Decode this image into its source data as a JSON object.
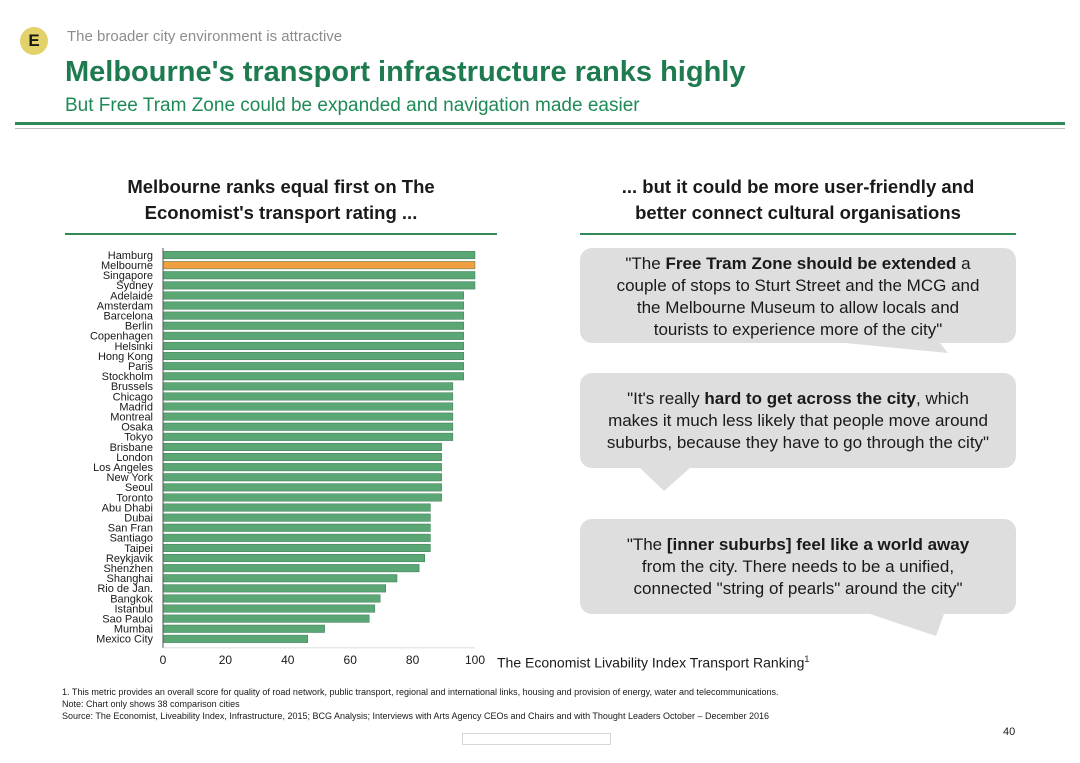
{
  "header": {
    "badge": "E",
    "kicker": "The broader city environment is attractive",
    "title": "Melbourne's transport infrastructure ranks highly",
    "subtitle": "But Free Tram Zone could be expanded and navigation made easier"
  },
  "left": {
    "heading_line1": "Melbourne ranks equal first on The",
    "heading_line2": "Economist's transport rating ..."
  },
  "right": {
    "heading_line1": "... but it could be more user-friendly and",
    "heading_line2": "better connect cultural organisations",
    "quotes": [
      {
        "lines": [
          [
            {
              "t": "\"The ",
              "b": false
            },
            {
              "t": "Free Tram Zone should be extended",
              "b": true
            },
            {
              "t": " a",
              "b": false
            }
          ],
          [
            {
              "t": "couple of stops to Sturt Street and the MCG and",
              "b": false
            }
          ],
          [
            {
              "t": "the Melbourne Museum to allow locals and",
              "b": false
            }
          ],
          [
            {
              "t": "tourists to experience more of the city\"",
              "b": false
            }
          ]
        ]
      },
      {
        "lines": [
          [
            {
              "t": "\"It's really ",
              "b": false
            },
            {
              "t": "hard to get across the city",
              "b": true
            },
            {
              "t": ", which",
              "b": false
            }
          ],
          [
            {
              "t": "makes it much less likely that people move around",
              "b": false
            }
          ],
          [
            {
              "t": "suburbs, because they have to go through the city\"",
              "b": false
            }
          ]
        ]
      },
      {
        "lines": [
          [
            {
              "t": "\"The ",
              "b": false
            },
            {
              "t": "[inner suburbs] feel like a world away",
              "b": true
            }
          ],
          [
            {
              "t": "from the city. There needs to be a unified,",
              "b": false
            }
          ],
          [
            {
              "t": "connected \"string of pearls\" around the city\"",
              "b": false
            }
          ]
        ]
      }
    ]
  },
  "chart_data": {
    "type": "bar",
    "orientation": "horizontal",
    "categories": [
      "Hamburg",
      "Melbourne",
      "Singapore",
      "Sydney",
      "Adelaide",
      "Amsterdam",
      "Barcelona",
      "Berlin",
      "Copenhagen",
      "Helsinki",
      "Hong Kong",
      "Paris",
      "Stockholm",
      "Brussels",
      "Chicago",
      "Madrid",
      "Montreal",
      "Osaka",
      "Tokyo",
      "Brisbane",
      "London",
      "Los Angeles",
      "New York",
      "Seoul",
      "Toronto",
      "Abu Dhabi",
      "Dubai",
      "San Fran",
      "Santiago",
      "Taipei",
      "Reykjavik",
      "Shenzhen",
      "Shanghai",
      "Rio de Jan.",
      "Bangkok",
      "Istanbul",
      "Sao Paulo",
      "Mumbai",
      "Mexico City"
    ],
    "values": [
      100,
      100,
      100,
      100,
      96.4,
      96.4,
      96.4,
      96.4,
      96.4,
      96.4,
      96.4,
      96.4,
      96.4,
      92.9,
      92.9,
      92.9,
      92.9,
      92.9,
      92.9,
      89.3,
      89.3,
      89.3,
      89.3,
      89.3,
      89.3,
      85.7,
      85.7,
      85.7,
      85.7,
      85.7,
      83.9,
      82.1,
      75,
      71.4,
      69.6,
      67.9,
      66.1,
      51.8,
      46.4
    ],
    "highlight": "Melbourne",
    "xlim": [
      0,
      100
    ],
    "xticks": [
      "0",
      "20",
      "40",
      "60",
      "80",
      "100"
    ],
    "xlabel": "The Economist Livability Index Transport Ranking",
    "xlabel_sup": "1",
    "colors": {
      "bar": "#5aa675",
      "highlight": "#f0a040",
      "bar_edge": "#3d7d55"
    }
  },
  "footer": {
    "note1": "1. This metric provides an overall score for quality of road network, public transport, regional and international links, housing and provision of energy, water and telecommunications.",
    "note2": "Note: Chart only shows 38 comparison cities",
    "source": "Source: The Economist, Liveability Index, Infrastructure, 2015; BCG Analysis; Interviews with Arts Agency CEOs and Chairs and with Thought Leaders October – December 2016",
    "page_number": "40"
  }
}
